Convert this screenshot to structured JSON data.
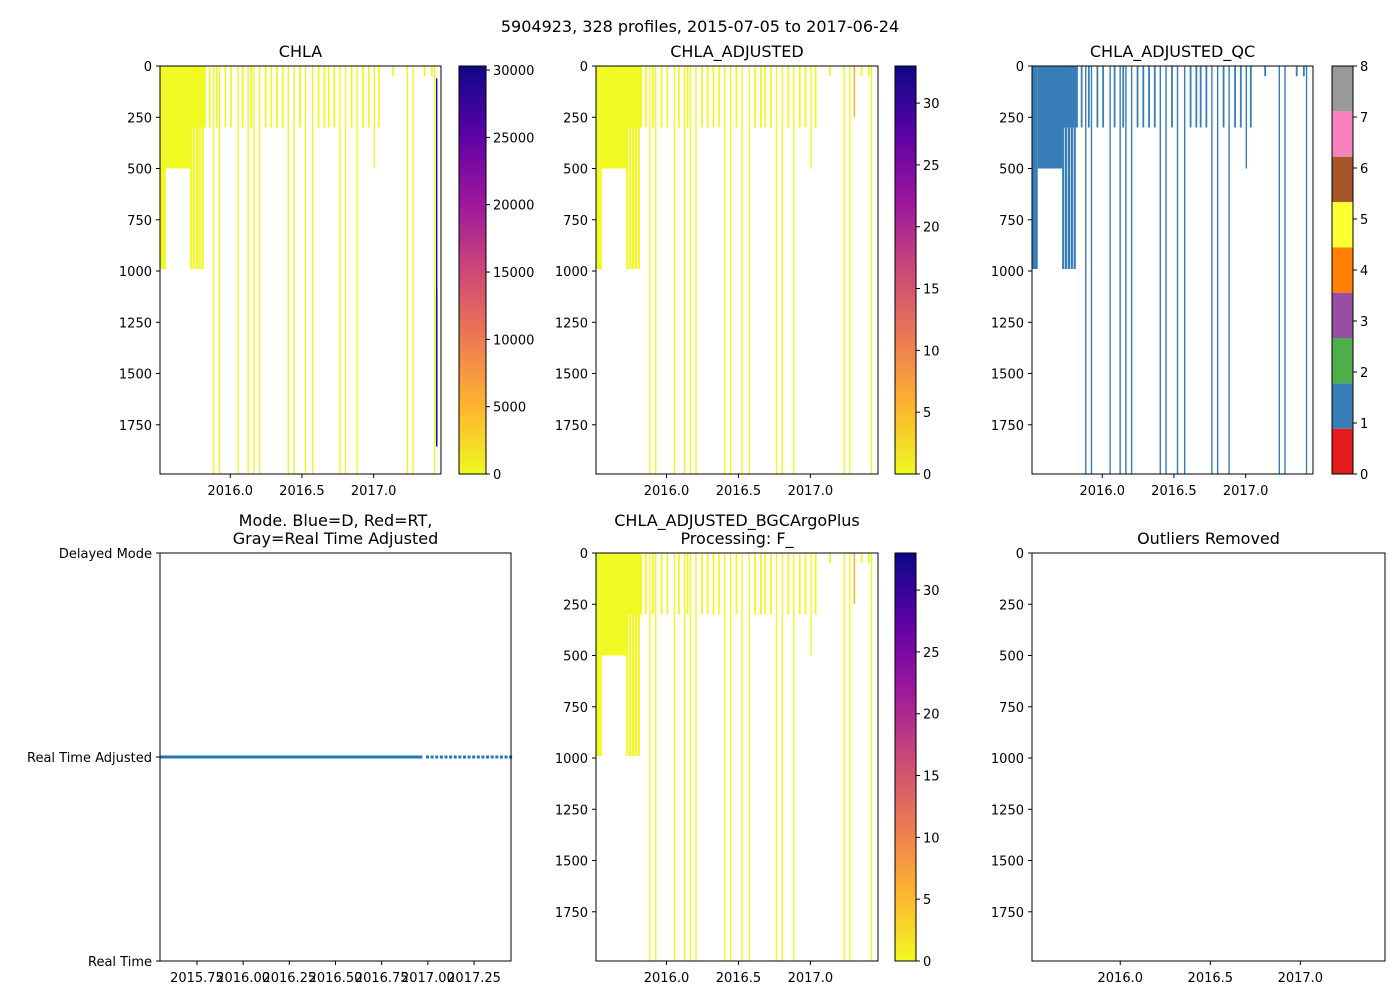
{
  "figure_title": "5904923, 328 profiles, 2015-07-05 to 2017-06-24",
  "colors": {
    "plasma_stops": [
      "#f0f921",
      "#fdb42f",
      "#ed7953",
      "#cc4778",
      "#9c179e",
      "#5c01a6",
      "#0d0887"
    ],
    "qc_palette": [
      "#e41a1c",
      "#377eb8",
      "#4daf4a",
      "#984ea3",
      "#ff7f00",
      "#ffff33",
      "#a65628",
      "#f781bf",
      "#999999"
    ],
    "qc_main": "#377eb8",
    "mode_line": "#1f77b4"
  },
  "chart_data": [
    {
      "id": "chla",
      "type": "heatmap",
      "title": "CHLA",
      "ylim": [
        1990,
        0
      ],
      "xlim": [
        2015.51,
        2017.47
      ],
      "xticks": [
        2016.0,
        2016.5,
        2017.0
      ],
      "xtick_labels": [
        "2016.0",
        "2016.5",
        "2017.0"
      ],
      "yticks": [
        0,
        250,
        500,
        750,
        1000,
        1250,
        1500,
        1750
      ],
      "ytick_labels": [
        "0",
        "250",
        "500",
        "750",
        "1000",
        "1250",
        "1500",
        "1750"
      ],
      "colorbar": {
        "min": 0,
        "max": 30300,
        "ticks": [
          0,
          5000,
          10000,
          15000,
          20000,
          25000,
          30000
        ],
        "tick_labels": [
          "0",
          "5000",
          "10000",
          "15000",
          "20000",
          "25000",
          "30000"
        ]
      }
    },
    {
      "id": "chla-adjusted",
      "type": "heatmap",
      "title": "CHLA_ADJUSTED",
      "ylim": [
        1990,
        0
      ],
      "xlim": [
        2015.51,
        2017.47
      ],
      "xticks": [
        2016.0,
        2016.5,
        2017.0
      ],
      "xtick_labels": [
        "2016.0",
        "2016.5",
        "2017.0"
      ],
      "yticks": [
        0,
        250,
        500,
        750,
        1000,
        1250,
        1500,
        1750
      ],
      "ytick_labels": [
        "0",
        "250",
        "500",
        "750",
        "1000",
        "1250",
        "1500",
        "1750"
      ],
      "colorbar": {
        "min": 0,
        "max": 33,
        "ticks": [
          0,
          5,
          10,
          15,
          20,
          25,
          30
        ],
        "tick_labels": [
          "0",
          "5",
          "10",
          "15",
          "20",
          "25",
          "30"
        ]
      }
    },
    {
      "id": "chla-adjusted-qc",
      "type": "heatmap",
      "title": "CHLA_ADJUSTED_QC",
      "ylim": [
        1990,
        0
      ],
      "xlim": [
        2015.51,
        2017.47
      ],
      "xticks": [
        2016.0,
        2016.5,
        2017.0
      ],
      "xtick_labels": [
        "2016.0",
        "2016.5",
        "2017.0"
      ],
      "yticks": [
        0,
        250,
        500,
        750,
        1000,
        1250,
        1500,
        1750
      ],
      "ytick_labels": [
        "0",
        "250",
        "500",
        "750",
        "1000",
        "1250",
        "1500",
        "1750"
      ],
      "colorbar": {
        "min": 0,
        "max": 8,
        "ticks": [
          0,
          1,
          2,
          3,
          4,
          5,
          6,
          7,
          8
        ],
        "tick_labels": [
          "0",
          "1",
          "2",
          "3",
          "4",
          "5",
          "6",
          "7",
          "8"
        ]
      }
    },
    {
      "id": "mode",
      "type": "scatter",
      "title": "Mode. Blue=D, Red=RT,",
      "title_line2": "Gray=Real Time Adjusted",
      "ylim": [
        0,
        2
      ],
      "xlim": [
        2015.55,
        2017.45
      ],
      "yticks": [
        0,
        1,
        2
      ],
      "ytick_labels": [
        "Real Time",
        "Real Time Adjusted",
        "Delayed Mode"
      ],
      "xticks": [
        2015.75,
        2016.0,
        2016.25,
        2016.5,
        2016.75,
        2017.0,
        2017.25
      ],
      "xtick_labels": [
        "2015.75",
        "2016.00",
        "2016.25",
        "2016.50",
        "2016.75",
        "2017.00",
        "2017.25"
      ],
      "series": [
        {
          "name": "Real Time Adjusted",
          "y": 1,
          "x_start": 2015.51,
          "x_dense_end": 2016.97,
          "x_end": 2017.47
        }
      ]
    },
    {
      "id": "bgcargoplus",
      "type": "heatmap",
      "title": "CHLA_ADJUSTED_BGCArgoPlus",
      "title_line2": "Processing: F_",
      "ylim": [
        1990,
        0
      ],
      "xlim": [
        2015.51,
        2017.47
      ],
      "xticks": [
        2016.0,
        2016.5,
        2017.0
      ],
      "xtick_labels": [
        "2016.0",
        "2016.5",
        "2017.0"
      ],
      "yticks": [
        0,
        250,
        500,
        750,
        1000,
        1250,
        1500,
        1750
      ],
      "ytick_labels": [
        "0",
        "250",
        "500",
        "750",
        "1000",
        "1250",
        "1500",
        "1750"
      ],
      "colorbar": {
        "min": 0,
        "max": 33,
        "ticks": [
          0,
          5,
          10,
          15,
          20,
          25,
          30
        ],
        "tick_labels": [
          "0",
          "5",
          "10",
          "15",
          "20",
          "25",
          "30"
        ]
      }
    },
    {
      "id": "outliers",
      "type": "heatmap",
      "title": "Outliers Removed",
      "ylim": [
        1990,
        0
      ],
      "xlim": [
        2015.51,
        2017.47
      ],
      "xticks": [
        2016.0,
        2016.5,
        2017.0
      ],
      "xtick_labels": [
        "2016.0",
        "2016.5",
        "2017.0"
      ],
      "yticks": [
        0,
        250,
        500,
        750,
        1000,
        1250,
        1500,
        1750
      ],
      "ytick_labels": [
        "0",
        "250",
        "500",
        "750",
        "1000",
        "1250",
        "1500",
        "1750"
      ]
    }
  ],
  "profiles": {
    "note": "data columns: x = decimal year, depth in dbar",
    "block": [
      {
        "x0": 2015.51,
        "x1": 2015.55,
        "depth": 990
      },
      {
        "x0": 2015.55,
        "x1": 2015.72,
        "depth": 500
      },
      {
        "x0": 2015.72,
        "x1": 2015.83,
        "depth": 300
      }
    ],
    "deep": [
      {
        "x": 2015.76,
        "depth": 990
      },
      {
        "x": 2015.78,
        "depth": 990
      },
      {
        "x": 2015.8,
        "depth": 990
      },
      {
        "x": 2015.72,
        "depth": 990
      },
      {
        "x": 2015.74,
        "depth": 990
      }
    ],
    "lines": [
      {
        "x": 2015.88,
        "depth": 1990
      },
      {
        "x": 2015.92,
        "depth": 1990
      },
      {
        "x": 2016.05,
        "depth": 1990
      },
      {
        "x": 2016.12,
        "depth": 1990
      },
      {
        "x": 2016.16,
        "depth": 1990
      },
      {
        "x": 2016.2,
        "depth": 1990
      },
      {
        "x": 2016.4,
        "depth": 1990
      },
      {
        "x": 2016.44,
        "depth": 1990
      },
      {
        "x": 2016.52,
        "depth": 1990
      },
      {
        "x": 2016.57,
        "depth": 1990
      },
      {
        "x": 2016.76,
        "depth": 1990
      },
      {
        "x": 2016.8,
        "depth": 1990
      },
      {
        "x": 2016.88,
        "depth": 1990
      },
      {
        "x": 2017.23,
        "depth": 1990
      },
      {
        "x": 2017.27,
        "depth": 1990
      },
      {
        "x": 2017.42,
        "depth": 1990
      },
      {
        "x": 2017.0,
        "depth": 500
      }
    ],
    "shallow": [
      {
        "x": 2015.85,
        "depth": 300
      },
      {
        "x": 2015.9,
        "depth": 300
      },
      {
        "x": 2015.96,
        "depth": 300
      },
      {
        "x": 2016.0,
        "depth": 300
      },
      {
        "x": 2016.08,
        "depth": 300
      },
      {
        "x": 2016.14,
        "depth": 300
      },
      {
        "x": 2016.24,
        "depth": 300
      },
      {
        "x": 2016.28,
        "depth": 300
      },
      {
        "x": 2016.32,
        "depth": 300
      },
      {
        "x": 2016.36,
        "depth": 300
      },
      {
        "x": 2016.48,
        "depth": 300
      },
      {
        "x": 2016.61,
        "depth": 300
      },
      {
        "x": 2016.65,
        "depth": 300
      },
      {
        "x": 2016.68,
        "depth": 300
      },
      {
        "x": 2016.72,
        "depth": 300
      },
      {
        "x": 2016.84,
        "depth": 300
      },
      {
        "x": 2016.92,
        "depth": 300
      },
      {
        "x": 2016.96,
        "depth": 300
      },
      {
        "x": 2017.03,
        "depth": 300
      },
      {
        "x": 2017.13,
        "depth": 50
      },
      {
        "x": 2017.35,
        "depth": 50
      },
      {
        "x": 2017.4,
        "depth": 50
      }
    ]
  }
}
